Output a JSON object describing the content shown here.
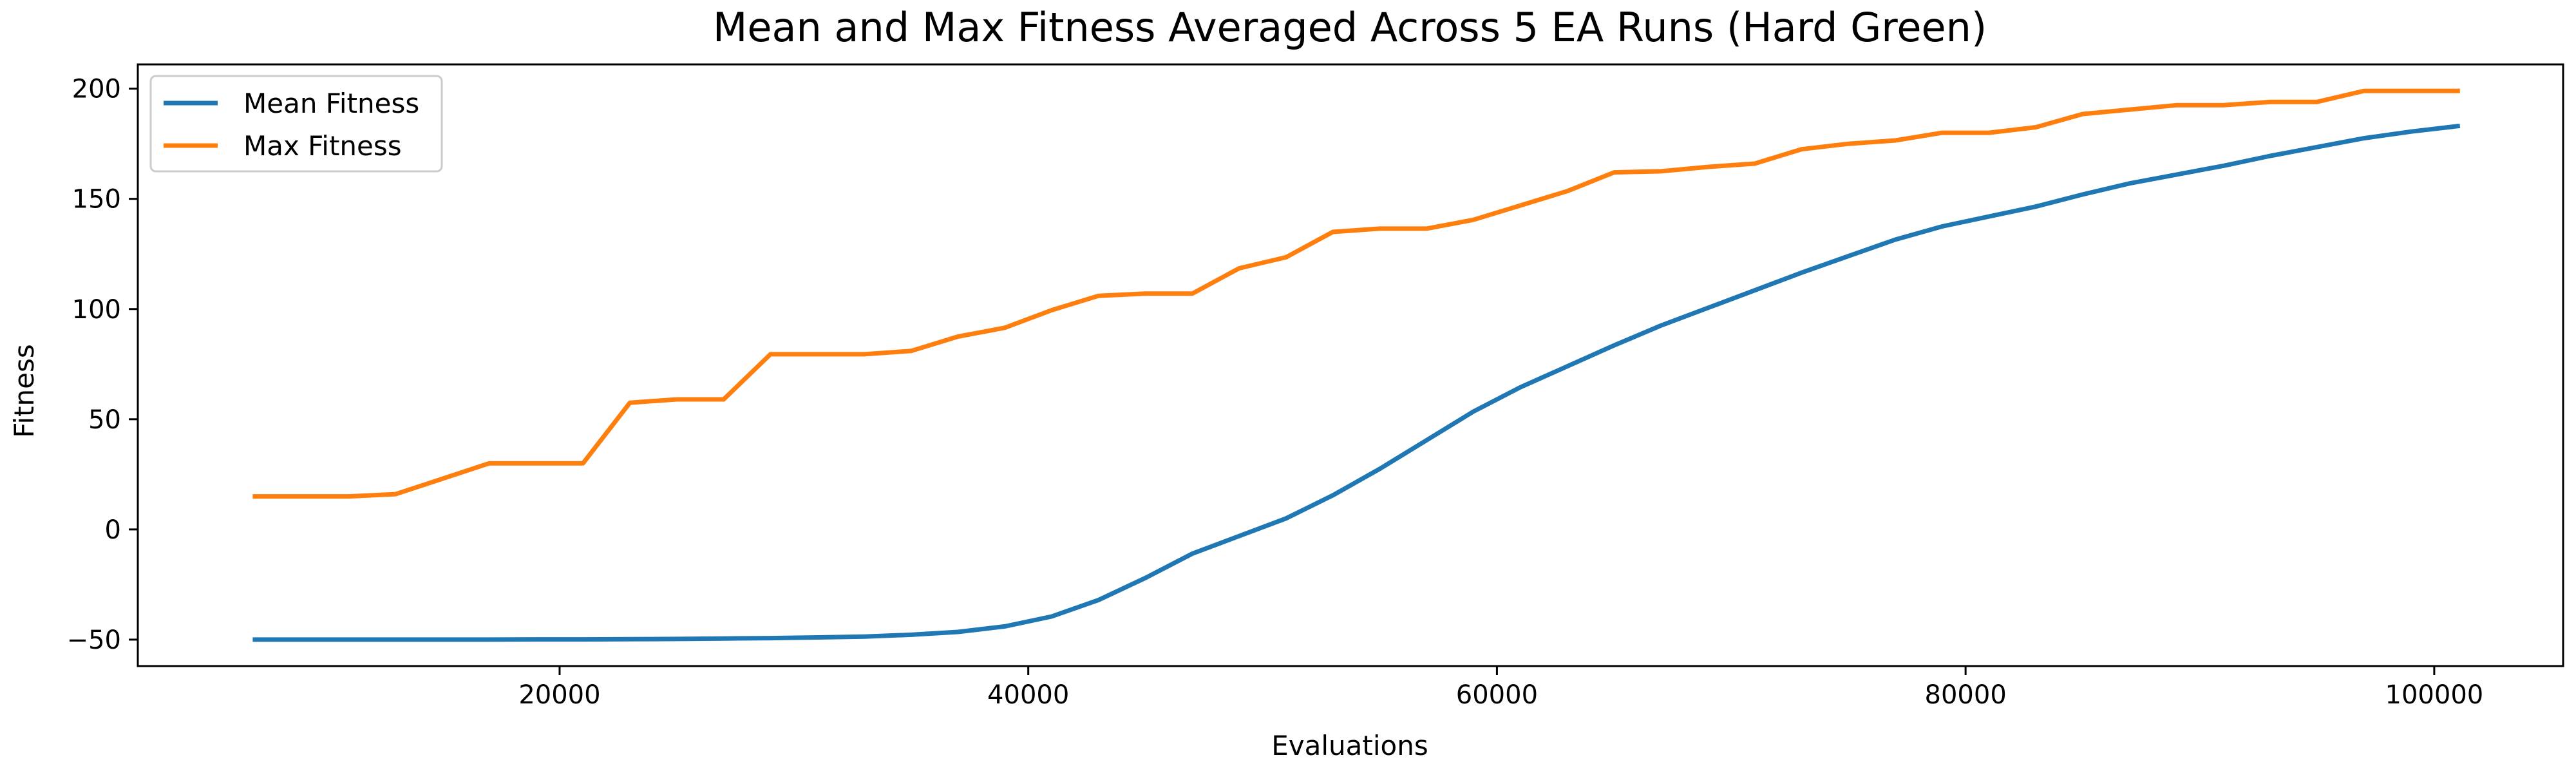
{
  "chart_data": {
    "type": "line",
    "title": "Mean and Max Fitness Averaged Across 5 EA Runs (Hard Green)",
    "xlabel": "Evaluations",
    "ylabel": "Fitness",
    "xlim": [
      2000,
      105500
    ],
    "ylim": [
      -62,
      211
    ],
    "x_ticks": [
      20000,
      40000,
      60000,
      80000,
      100000
    ],
    "x_tick_labels": [
      "20000",
      "40000",
      "60000",
      "80000",
      "100000"
    ],
    "y_ticks": [
      -50,
      0,
      50,
      100,
      150,
      200
    ],
    "y_tick_labels": [
      "−50",
      "0",
      "50",
      "100",
      "150",
      "200"
    ],
    "grid": false,
    "legend_position": "upper-left",
    "x": [
      7000,
      9000,
      11000,
      13000,
      15000,
      17000,
      19000,
      21000,
      23000,
      25000,
      27000,
      29000,
      31000,
      33000,
      35000,
      37000,
      39000,
      41000,
      43000,
      45000,
      47000,
      49000,
      51000,
      53000,
      55000,
      57000,
      59000,
      61000,
      63000,
      65000,
      67000,
      69000,
      71000,
      73000,
      75000,
      77000,
      79000,
      81000,
      83000,
      85000,
      87000,
      89000,
      91000,
      93000,
      95000,
      97000,
      99000,
      101000
    ],
    "series": [
      {
        "name": "Mean Fitness",
        "color": "#1f77b4",
        "values": [
          -50,
          -50,
          -50,
          -50,
          -50,
          -50,
          -49.9,
          -49.9,
          -49.8,
          -49.7,
          -49.5,
          -49.3,
          -49,
          -48.6,
          -47.8,
          -46.5,
          -44,
          -39.5,
          -32,
          -22,
          -11,
          -3,
          5,
          15.5,
          27.5,
          40.5,
          53.5,
          64.5,
          74,
          83.5,
          92.5,
          100.5,
          108.5,
          116.5,
          124,
          131.5,
          137.5,
          142,
          146.5,
          152,
          157,
          161,
          165,
          169.5,
          173.5,
          177.5,
          180.5,
          183
        ]
      },
      {
        "name": "Max Fitness",
        "color": "#ff7f0e",
        "values": [
          15,
          15,
          15,
          16,
          23,
          30,
          30,
          30,
          57.5,
          59,
          59,
          79.5,
          79.5,
          79.5,
          81,
          87.5,
          91.5,
          99.5,
          106,
          107,
          107,
          118.5,
          123.5,
          135,
          136.5,
          136.5,
          140.5,
          147,
          153.5,
          162,
          162.5,
          164.5,
          166,
          172.5,
          175,
          176.5,
          180,
          180,
          182.5,
          188.5,
          190.5,
          192.5,
          192.5,
          194,
          194,
          199,
          199,
          199
        ]
      }
    ]
  }
}
